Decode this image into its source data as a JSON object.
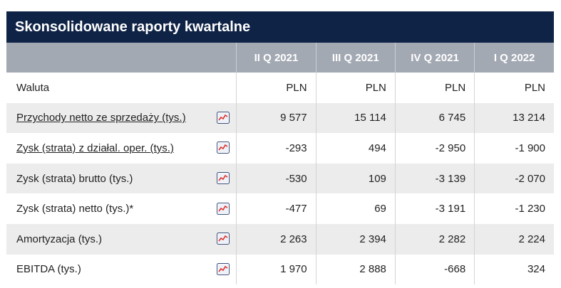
{
  "title": "Skonsolidowane raporty kwartalne",
  "columns": [
    "II Q 2021",
    "III Q 2021",
    "IV Q 2021",
    "I Q 2022"
  ],
  "rows": [
    {
      "label": "Waluta",
      "link": false,
      "chart": false,
      "values": [
        "PLN",
        "PLN",
        "PLN",
        "PLN"
      ]
    },
    {
      "label": "Przychody netto ze sprzedaży (tys.)",
      "link": true,
      "chart": true,
      "values": [
        "9 577",
        "15 114",
        "6 745",
        "13 214"
      ]
    },
    {
      "label": "Zysk (strata) z działal. oper. (tys.)",
      "link": true,
      "chart": true,
      "values": [
        "-293",
        "494",
        "-2 950",
        "-1 900"
      ]
    },
    {
      "label": "Zysk (strata) brutto (tys.)",
      "link": false,
      "chart": true,
      "values": [
        "-530",
        "109",
        "-3 139",
        "-2 070"
      ]
    },
    {
      "label": "Zysk (strata) netto (tys.)*",
      "link": false,
      "chart": true,
      "values": [
        "-477",
        "69",
        "-3 191",
        "-1 230"
      ]
    },
    {
      "label": "Amortyzacja (tys.)",
      "link": false,
      "chart": true,
      "values": [
        "2 263",
        "2 394",
        "2 282",
        "2 224"
      ]
    },
    {
      "label": "EBITDA (tys.)",
      "link": false,
      "chart": true,
      "values": [
        "1 970",
        "2 888",
        "-668",
        "324"
      ]
    }
  ],
  "chart_icon": "line-chart-icon",
  "colors": {
    "title_bg": "#0f2346",
    "header_bg": "#a3a9b3",
    "row_alt": "#ececec",
    "icon_line": "#e0322d"
  }
}
